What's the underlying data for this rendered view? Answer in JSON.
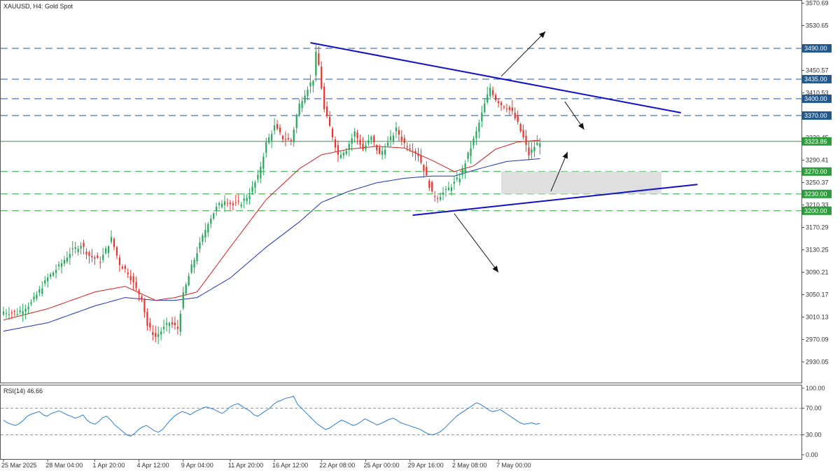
{
  "header": {
    "symbol_label": "XAUUSD, H4:  Gold Spot"
  },
  "rsi": {
    "label": "RSI(14) 46.66"
  },
  "colors": {
    "bull": "#26a65b",
    "bear": "#e8322e",
    "ma_fast": "#d42020",
    "ma_slow": "#1a33b8",
    "trendline": "#1010cc",
    "green_level": "#2e9d3c",
    "blue_level": "#23588c",
    "zone": "#d9d9d9",
    "rsi_line": "#2d7fd6"
  },
  "chart_data": [
    {
      "type": "candlestick",
      "title": "XAUUSD, H4:  Gold Spot",
      "ylim": [
        2900,
        3575
      ],
      "price_ticks": [
        "3570.69",
        "3530.65",
        "3490.61",
        "3450.57",
        "3410.53",
        "3370.49",
        "3330.45",
        "3290.41",
        "3250.37",
        "3210.33",
        "3170.29",
        "3130.25",
        "3090.21",
        "3050.17",
        "3010.13",
        "2970.09",
        "2930.05"
      ],
      "x_ticks": [
        {
          "label": "25 Mar 2025",
          "bar": 0
        },
        {
          "label": "28 Mar 04:00",
          "bar": 16
        },
        {
          "label": "1 Apr 20:00",
          "bar": 33
        },
        {
          "label": "4 Apr 12:00",
          "bar": 49
        },
        {
          "label": "9 Apr 04:00",
          "bar": 65
        },
        {
          "label": "11 Apr 20:00",
          "bar": 82
        },
        {
          "label": "16 Apr 12:00",
          "bar": 98
        },
        {
          "label": "22 Apr 08:00",
          "bar": 115
        },
        {
          "label": "25 Apr 00:00",
          "bar": 131
        },
        {
          "label": "29 Apr 16:00",
          "bar": 147
        },
        {
          "label": "2 May 08:00",
          "bar": 163
        },
        {
          "label": "7 May 00:00",
          "bar": 179
        }
      ],
      "close_anchors": [
        [
          0,
          3020
        ],
        [
          5,
          3018
        ],
        [
          10,
          3035
        ],
        [
          16,
          3080
        ],
        [
          20,
          3100
        ],
        [
          24,
          3125
        ],
        [
          28,
          3140
        ],
        [
          31,
          3120
        ],
        [
          35,
          3110
        ],
        [
          39,
          3150
        ],
        [
          42,
          3105
        ],
        [
          45,
          3090
        ],
        [
          48,
          3060
        ],
        [
          50,
          3045
        ],
        [
          52,
          2995
        ],
        [
          55,
          2975
        ],
        [
          57,
          2985
        ],
        [
          60,
          3000
        ],
        [
          63,
          2990
        ],
        [
          65,
          3050
        ],
        [
          68,
          3100
        ],
        [
          71,
          3140
        ],
        [
          74,
          3180
        ],
        [
          77,
          3205
        ],
        [
          80,
          3220
        ],
        [
          83,
          3210
        ],
        [
          86,
          3215
        ],
        [
          89,
          3230
        ],
        [
          92,
          3260
        ],
        [
          95,
          3320
        ],
        [
          98,
          3350
        ],
        [
          101,
          3330
        ],
        [
          104,
          3325
        ],
        [
          107,
          3390
        ],
        [
          110,
          3420
        ],
        [
          112,
          3435
        ],
        [
          113,
          3480
        ],
        [
          114,
          3460
        ],
        [
          115,
          3420
        ],
        [
          116,
          3380
        ],
        [
          118,
          3350
        ],
        [
          121,
          3300
        ],
        [
          124,
          3310
        ],
        [
          127,
          3340
        ],
        [
          130,
          3310
        ],
        [
          133,
          3330
        ],
        [
          136,
          3300
        ],
        [
          139,
          3320
        ],
        [
          142,
          3345
        ],
        [
          145,
          3320
        ],
        [
          148,
          3310
        ],
        [
          150,
          3300
        ],
        [
          153,
          3260
        ],
        [
          155,
          3230
        ],
        [
          157,
          3225
        ],
        [
          160,
          3235
        ],
        [
          163,
          3250
        ],
        [
          165,
          3260
        ],
        [
          168,
          3300
        ],
        [
          171,
          3340
        ],
        [
          174,
          3390
        ],
        [
          176,
          3420
        ],
        [
          178,
          3400
        ],
        [
          180,
          3390
        ],
        [
          182,
          3385
        ],
        [
          184,
          3375
        ],
        [
          186,
          3355
        ],
        [
          188,
          3330
        ],
        [
          190,
          3300
        ],
        [
          192,
          3315
        ],
        [
          194,
          3324
        ]
      ],
      "overlays": {
        "ma_fast_anchors": [
          [
            0,
            3005
          ],
          [
            16,
            3025
          ],
          [
            33,
            3055
          ],
          [
            44,
            3065
          ],
          [
            55,
            3040
          ],
          [
            62,
            3045
          ],
          [
            70,
            3055
          ],
          [
            82,
            3135
          ],
          [
            95,
            3220
          ],
          [
            107,
            3275
          ],
          [
            115,
            3300
          ],
          [
            125,
            3310
          ],
          [
            135,
            3315
          ],
          [
            145,
            3312
          ],
          [
            155,
            3290
          ],
          [
            163,
            3270
          ],
          [
            170,
            3280
          ],
          [
            178,
            3310
          ],
          [
            186,
            3323
          ],
          [
            194,
            3326
          ]
        ],
        "ma_slow_anchors": [
          [
            0,
            2985
          ],
          [
            16,
            3000
          ],
          [
            33,
            3030
          ],
          [
            44,
            3045
          ],
          [
            55,
            3040
          ],
          [
            62,
            3040
          ],
          [
            70,
            3045
          ],
          [
            82,
            3080
          ],
          [
            95,
            3135
          ],
          [
            107,
            3180
          ],
          [
            115,
            3215
          ],
          [
            125,
            3235
          ],
          [
            135,
            3250
          ],
          [
            145,
            3258
          ],
          [
            155,
            3262
          ],
          [
            163,
            3262
          ],
          [
            172,
            3275
          ],
          [
            182,
            3288
          ],
          [
            194,
            3293
          ]
        ]
      },
      "trendlines": [
        {
          "from": [
            111,
            3500
          ],
          "to": [
            245,
            3375
          ]
        },
        {
          "from": [
            148,
            3192
          ],
          "to": [
            251,
            3247
          ]
        }
      ],
      "levels": [
        {
          "price": 3490.0,
          "label": "3490.00",
          "style": "blue-dash"
        },
        {
          "price": 3435.0,
          "label": "3435.00",
          "style": "blue-dash"
        },
        {
          "price": 3400.0,
          "label": "3400.00",
          "style": "blue-dash"
        },
        {
          "price": 3370.0,
          "label": "3370.00",
          "style": "blue-dash"
        },
        {
          "price": 3323.86,
          "label": "3323.86",
          "style": "green-solid"
        },
        {
          "price": 3270.0,
          "label": "3270.00",
          "style": "green-dash"
        },
        {
          "price": 3230.0,
          "label": "3230.00",
          "style": "green-dash"
        },
        {
          "price": 3200.0,
          "label": "3200.00",
          "style": "green-dash"
        }
      ],
      "zone": {
        "bar_from": 180,
        "bar_to": 238,
        "price_from": 3230,
        "price_to": 3270
      },
      "arrows": [
        {
          "from": [
            180,
            3440
          ],
          "to": [
            196,
            3520
          ]
        },
        {
          "from": [
            203,
            3395
          ],
          "to": [
            210,
            3345
          ]
        },
        {
          "from": [
            198,
            3235
          ],
          "to": [
            204,
            3305
          ]
        },
        {
          "from": [
            163,
            3195
          ],
          "to": [
            179,
            3090
          ]
        }
      ]
    },
    {
      "type": "line",
      "title": "RSI(14) 46.66",
      "ylim": [
        0,
        100
      ],
      "y_ticks": [
        "100.00",
        "70.00",
        "30.00",
        "0.00"
      ],
      "levels": [
        70,
        30
      ],
      "series": [
        {
          "name": "RSI(14)",
          "values": [
            52,
            48,
            46,
            44,
            47,
            52,
            58,
            61,
            63,
            65,
            60,
            58,
            62,
            64,
            66,
            63,
            60,
            58,
            55,
            57,
            60,
            52,
            48,
            46,
            50,
            56,
            58,
            52,
            45,
            40,
            35,
            30,
            28,
            32,
            38,
            42,
            44,
            40,
            36,
            34,
            38,
            45,
            52,
            58,
            62,
            65,
            63,
            60,
            64,
            67,
            70,
            72,
            70,
            68,
            65,
            62,
            66,
            72,
            75,
            77,
            73,
            69,
            66,
            60,
            58,
            62,
            66,
            70,
            76,
            80,
            82,
            85,
            86,
            88,
            76,
            70,
            64,
            58,
            52,
            46,
            42,
            38,
            40,
            44,
            48,
            52,
            50,
            47,
            44,
            46,
            50,
            54,
            51,
            48,
            45,
            47,
            50,
            53,
            55,
            52,
            48,
            46,
            44,
            42,
            40,
            38,
            34,
            31,
            30,
            32,
            35,
            40,
            46,
            52,
            58,
            62,
            66,
            70,
            74,
            78,
            76,
            72,
            68,
            65,
            66,
            68,
            64,
            60,
            56,
            52,
            48,
            46,
            47,
            48,
            46,
            47
          ]
        }
      ]
    }
  ]
}
